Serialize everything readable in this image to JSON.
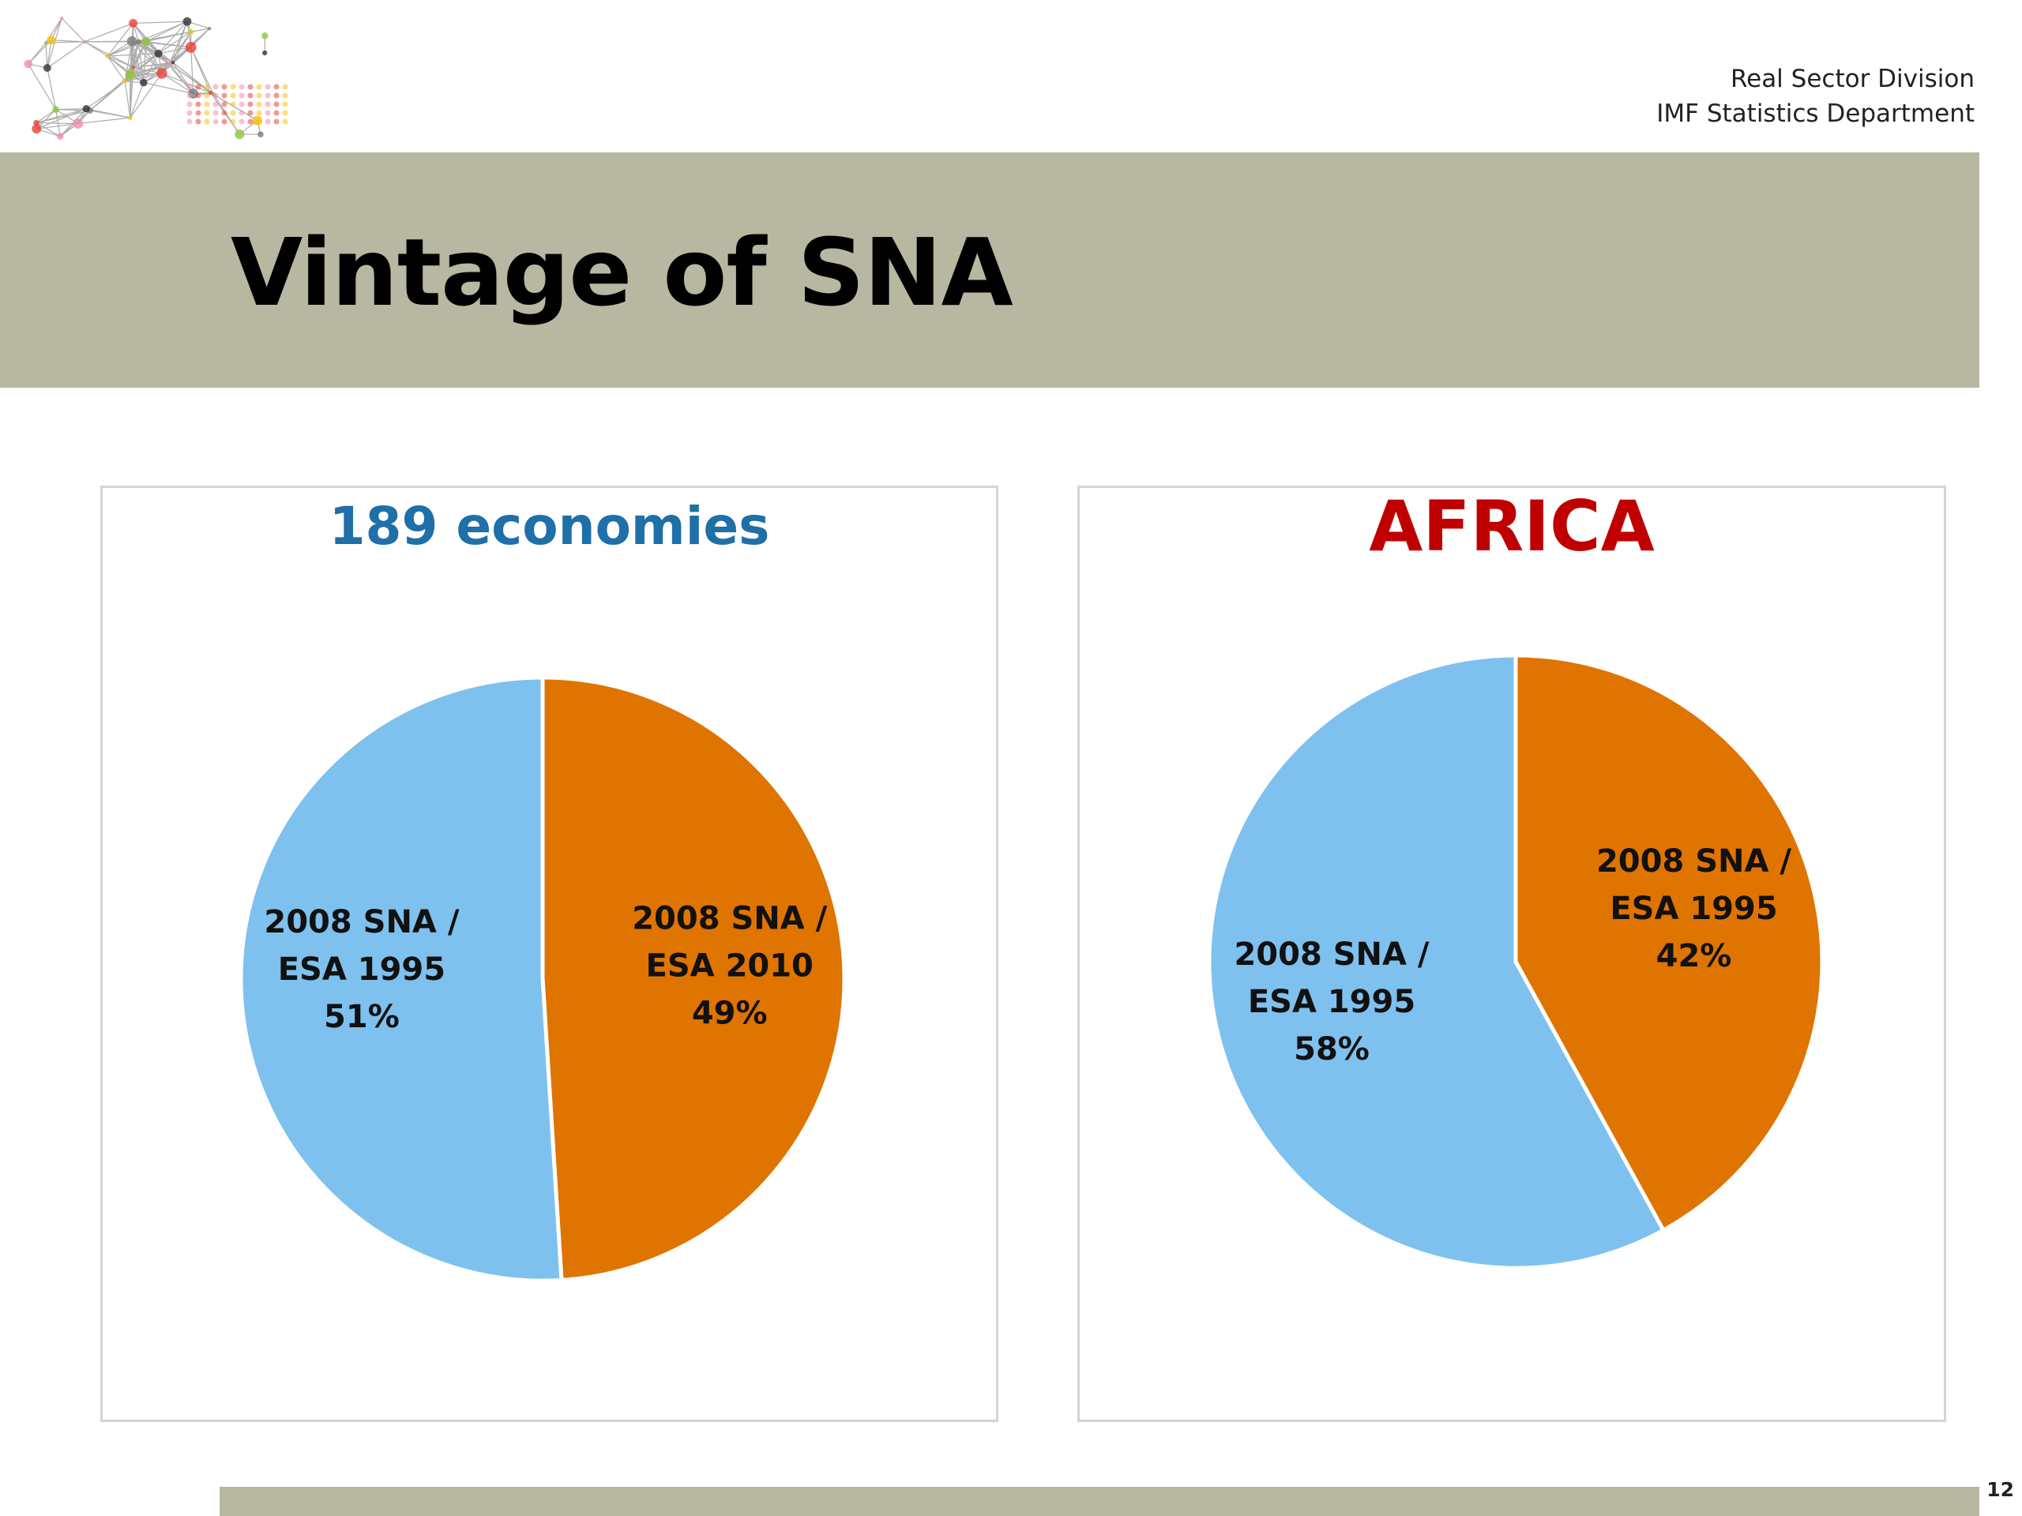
{
  "header": {
    "org_line1": "Real Sector Division",
    "org_line2": "IMF Statistics Department",
    "logo_icon": "network-dots-logo"
  },
  "slide": {
    "title": "Vintage of SNA",
    "page_number": "12",
    "band_color": "#b8b8a2"
  },
  "chart_data": [
    {
      "type": "pie",
      "title": "189 economies",
      "title_color": "#1f6fa8",
      "slices": [
        {
          "label_lines": [
            "2008 SNA /",
            "ESA 2010"
          ],
          "pct_text": "49%",
          "value": 49,
          "color": "#e07400"
        },
        {
          "label_lines": [
            "2008 SNA /",
            "ESA 1995"
          ],
          "pct_text": "51%",
          "value": 51,
          "color": "#7fc1ee"
        }
      ]
    },
    {
      "type": "pie",
      "title": "AFRICA",
      "title_color": "#c00000",
      "slices": [
        {
          "label_lines": [
            "2008 SNA /",
            "ESA 1995"
          ],
          "pct_text": "42%",
          "value": 42,
          "color": "#e07400"
        },
        {
          "label_lines": [
            "2008 SNA /",
            "ESA 1995"
          ],
          "pct_text": "58%",
          "value": 58,
          "color": "#7fc1ee"
        }
      ]
    }
  ]
}
